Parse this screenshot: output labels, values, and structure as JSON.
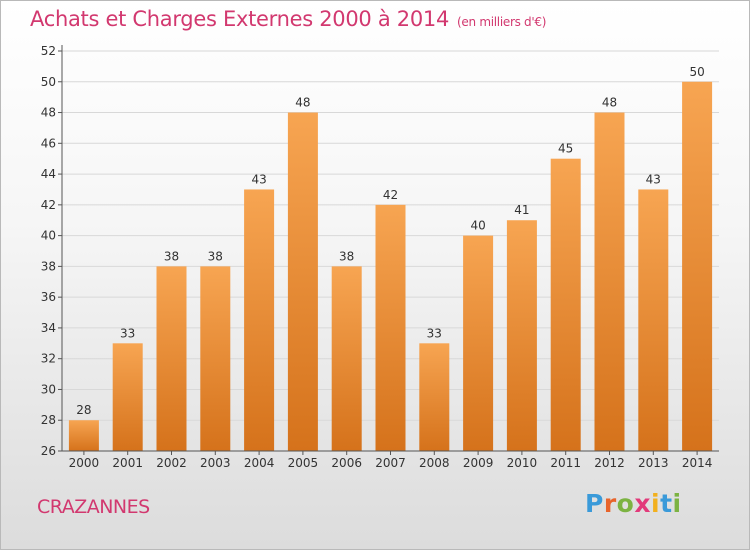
{
  "title": "Achats et Charges Externes 2000 à 2014",
  "unit_note": "(en milliers d'€)",
  "place": "CRAZANNES",
  "logo": {
    "text": "Proxiti",
    "letter_colors": [
      "#3a9ad9",
      "#e8642b",
      "#7cb342",
      "#e23a7a",
      "#f2b01e",
      "#3a9ad9",
      "#7cb342"
    ]
  },
  "colors": {
    "bar_top": "#f7a552",
    "bar_bottom": "#d5721b",
    "title": "#d2386f",
    "grid": "#d8d8d8",
    "axis": "#555555"
  },
  "chart_data": {
    "type": "bar",
    "categories": [
      "2000",
      "2001",
      "2002",
      "2003",
      "2004",
      "2005",
      "2006",
      "2007",
      "2008",
      "2009",
      "2010",
      "2011",
      "2012",
      "2013",
      "2014"
    ],
    "values": [
      28,
      33,
      38,
      38,
      43,
      48,
      38,
      42,
      33,
      40,
      41,
      45,
      48,
      43,
      50
    ],
    "ylim": [
      26,
      52
    ],
    "yticks": [
      26,
      28,
      30,
      32,
      34,
      36,
      38,
      40,
      42,
      44,
      46,
      48,
      50,
      52
    ],
    "grid": true,
    "data_labels": true
  }
}
